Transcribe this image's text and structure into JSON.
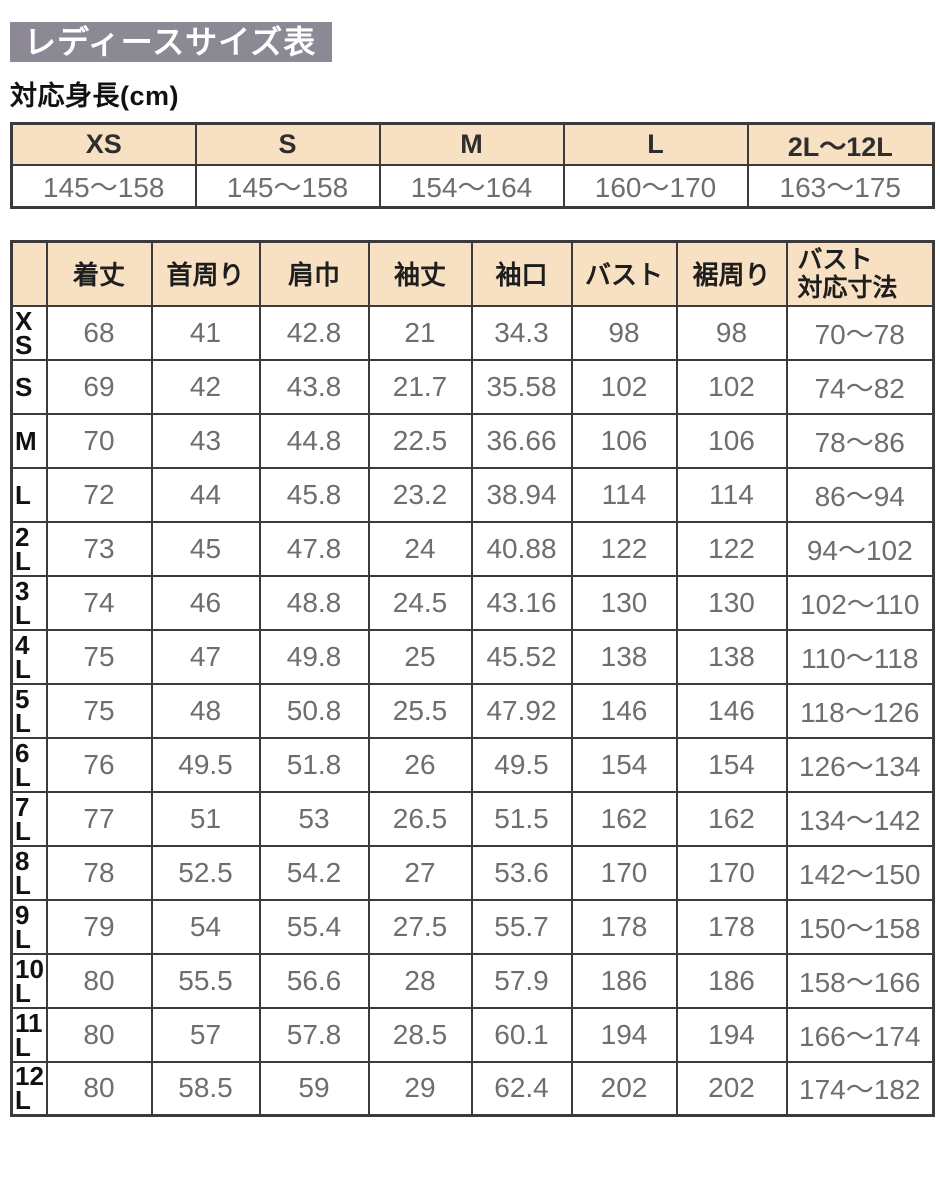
{
  "page": {
    "title": "レディースサイズ表",
    "subtitle": "対応身長(cm)"
  },
  "colors": {
    "title_bg": "#8c8995",
    "table_header_bg": "#f8e0c2",
    "border": "#3b3b3b",
    "value_text": "#6e6e6e",
    "label_text": "#111111"
  },
  "height_table": {
    "columns": [
      "XS",
      "S",
      "M",
      "L",
      "2L〜12L"
    ],
    "values": [
      "145〜158",
      "145〜158",
      "154〜164",
      "160〜170",
      "163〜175"
    ]
  },
  "size_table": {
    "column_headers": [
      "着丈",
      "首周り",
      "肩巾",
      "袖丈",
      "袖口",
      "バスト",
      "裾周り"
    ],
    "last_column_header_lines": [
      "バスト",
      "対応寸法"
    ],
    "rows": [
      {
        "size": "XS",
        "size_lines": [
          "X",
          "S"
        ],
        "values": [
          "68",
          "41",
          "42.8",
          "21",
          "34.3",
          "98",
          "98",
          "70〜78"
        ]
      },
      {
        "size": "S",
        "size_lines": [
          "S"
        ],
        "values": [
          "69",
          "42",
          "43.8",
          "21.7",
          "35.58",
          "102",
          "102",
          "74〜82"
        ]
      },
      {
        "size": "M",
        "size_lines": [
          "M"
        ],
        "values": [
          "70",
          "43",
          "44.8",
          "22.5",
          "36.66",
          "106",
          "106",
          "78〜86"
        ]
      },
      {
        "size": "L",
        "size_lines": [
          "L"
        ],
        "values": [
          "72",
          "44",
          "45.8",
          "23.2",
          "38.94",
          "114",
          "114",
          "86〜94"
        ]
      },
      {
        "size": "2L",
        "size_lines": [
          "2",
          "L"
        ],
        "values": [
          "73",
          "45",
          "47.8",
          "24",
          "40.88",
          "122",
          "122",
          "94〜102"
        ]
      },
      {
        "size": "3L",
        "size_lines": [
          "3",
          "L"
        ],
        "values": [
          "74",
          "46",
          "48.8",
          "24.5",
          "43.16",
          "130",
          "130",
          "102〜110"
        ]
      },
      {
        "size": "4L",
        "size_lines": [
          "4",
          "L"
        ],
        "values": [
          "75",
          "47",
          "49.8",
          "25",
          "45.52",
          "138",
          "138",
          "110〜118"
        ]
      },
      {
        "size": "5L",
        "size_lines": [
          "5",
          "L"
        ],
        "values": [
          "75",
          "48",
          "50.8",
          "25.5",
          "47.92",
          "146",
          "146",
          "118〜126"
        ]
      },
      {
        "size": "6L",
        "size_lines": [
          "6",
          "L"
        ],
        "values": [
          "76",
          "49.5",
          "51.8",
          "26",
          "49.5",
          "154",
          "154",
          "126〜134"
        ]
      },
      {
        "size": "7L",
        "size_lines": [
          "7",
          "L"
        ],
        "values": [
          "77",
          "51",
          "53",
          "26.5",
          "51.5",
          "162",
          "162",
          "134〜142"
        ]
      },
      {
        "size": "8L",
        "size_lines": [
          "8",
          "L"
        ],
        "values": [
          "78",
          "52.5",
          "54.2",
          "27",
          "53.6",
          "170",
          "170",
          "142〜150"
        ]
      },
      {
        "size": "9L",
        "size_lines": [
          "9",
          "L"
        ],
        "values": [
          "79",
          "54",
          "55.4",
          "27.5",
          "55.7",
          "178",
          "178",
          "150〜158"
        ]
      },
      {
        "size": "10L",
        "size_lines": [
          "10",
          "L"
        ],
        "values": [
          "80",
          "55.5",
          "56.6",
          "28",
          "57.9",
          "186",
          "186",
          "158〜166"
        ]
      },
      {
        "size": "11L",
        "size_lines": [
          "11",
          "L"
        ],
        "values": [
          "80",
          "57",
          "57.8",
          "28.5",
          "60.1",
          "194",
          "194",
          "166〜174"
        ]
      },
      {
        "size": "12L",
        "size_lines": [
          "12",
          "L"
        ],
        "values": [
          "80",
          "58.5",
          "59",
          "29",
          "62.4",
          "202",
          "202",
          "174〜182"
        ]
      }
    ]
  }
}
